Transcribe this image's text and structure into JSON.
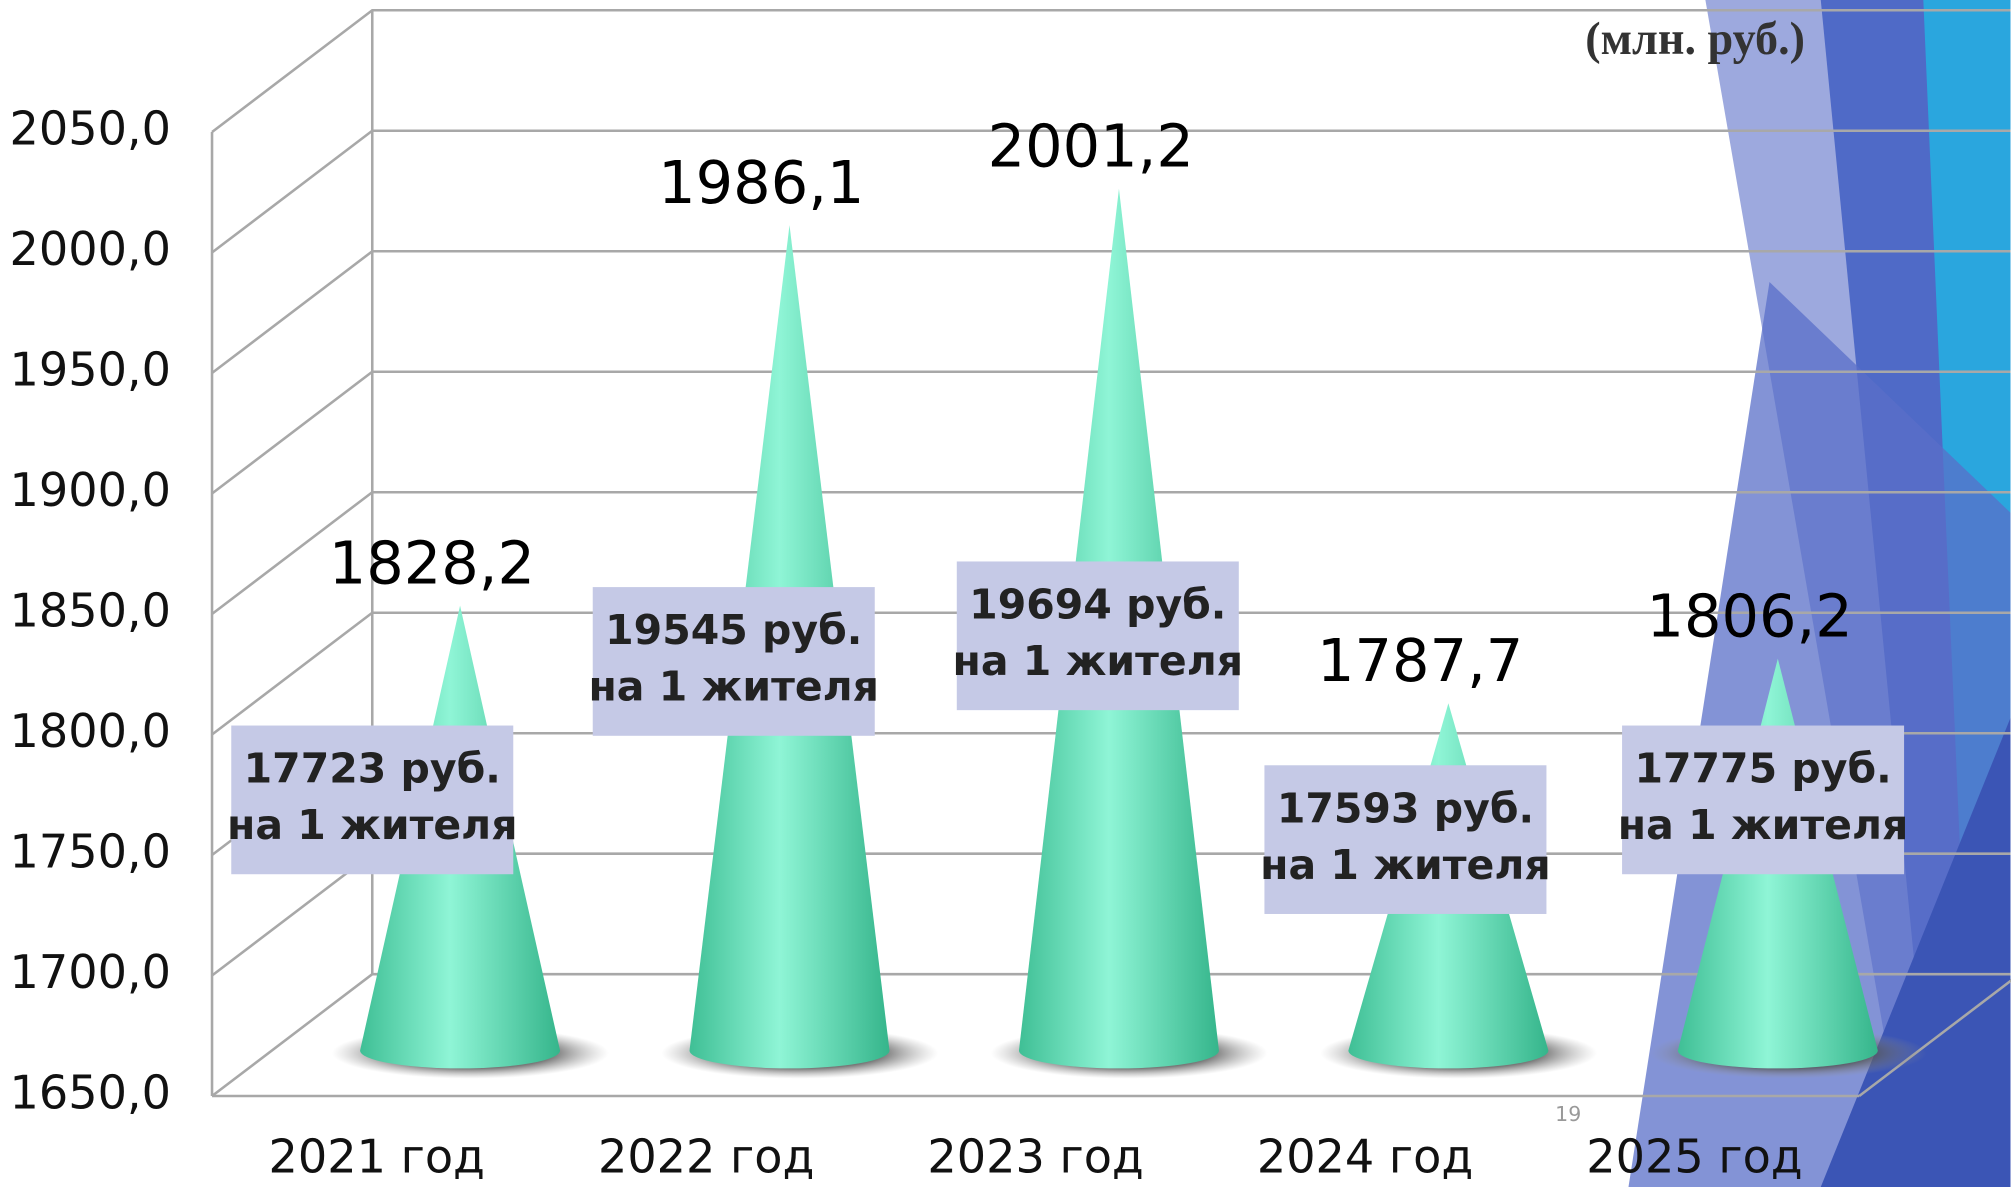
{
  "chart_data": {
    "type": "cone",
    "unit_label": "(млн. руб.)",
    "page_number": "19",
    "categories": [
      "2021 год",
      "2022 год",
      "2023 год",
      "2024 год",
      "2025 год"
    ],
    "values": [
      1828.2,
      1986.1,
      2001.2,
      1787.7,
      1806.2
    ],
    "value_labels": [
      "1828,2",
      "1986,1",
      "2001,2",
      "1787,7",
      "1806,2"
    ],
    "annotations": [
      [
        "17723 руб.",
        "на 1 жителя"
      ],
      [
        "19545 руб.",
        "на 1 жителя"
      ],
      [
        "19694 руб.",
        "на 1 жителя"
      ],
      [
        "17593 руб.",
        "на 1 жителя"
      ],
      [
        "17775 руб.",
        "на 1 жителя"
      ]
    ],
    "color": "#5fe0b8",
    "ylim": [
      1650,
      2050
    ],
    "yticks": [
      {
        "value": 1650,
        "label": "1650,0"
      },
      {
        "value": 1700,
        "label": "1700,0"
      },
      {
        "value": 1750,
        "label": "1750,0"
      },
      {
        "value": 1800,
        "label": "1800,0"
      },
      {
        "value": 1850,
        "label": "1850,0"
      },
      {
        "value": 1900,
        "label": "1900,0"
      },
      {
        "value": 1950,
        "label": "1950,0"
      },
      {
        "value": 2000,
        "label": "2000,0"
      },
      {
        "value": 2050,
        "label": "2050,0"
      }
    ],
    "grid": true
  }
}
